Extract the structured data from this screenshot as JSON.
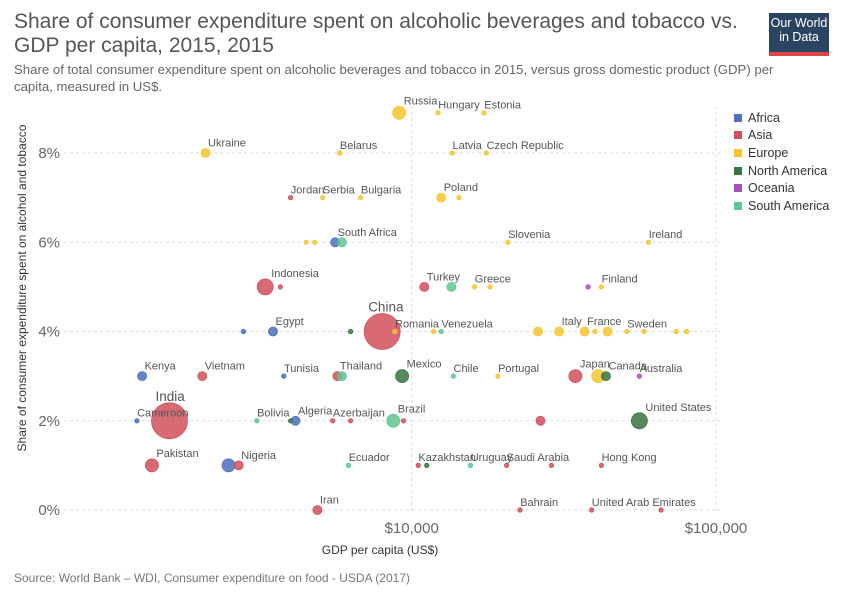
{
  "header": {
    "title": "Share of consumer expenditure spent on alcoholic beverages and tobacco vs. GDP per capita, 2015, 2015",
    "subtitle": "Share of total consumer expenditure spent on alcoholic beverages and tobacco in 2015, versus gross domestic product (GDP) per capita, measured in US$.",
    "logo_line1": "Our World",
    "logo_line2": "in Data"
  },
  "footer": {
    "source": "Source: World Bank – WDI, Consumer expenditure on food - USDA (2017)"
  },
  "chart_data": {
    "type": "scatter",
    "title": "Share of consumer expenditure spent on alcoholic beverages and tobacco vs. GDP per capita, 2015, 2015",
    "xlabel": "GDP per capita (US$)",
    "ylabel": "Share of consumer expenditure spent on alcohol and tobacco",
    "x_scale": "log",
    "xlim": [
      720,
      100000
    ],
    "ylim": [
      0,
      9
    ],
    "x_ticks": [
      {
        "value": 10000,
        "label": "$10,000"
      },
      {
        "value": 100000,
        "label": "$100,000"
      }
    ],
    "y_ticks": [
      {
        "value": 0,
        "label": "0%"
      },
      {
        "value": 2,
        "label": "2%"
      },
      {
        "value": 4,
        "label": "4%"
      },
      {
        "value": 6,
        "label": "6%"
      },
      {
        "value": 8,
        "label": "8%"
      }
    ],
    "grid": true,
    "legend_position": "right",
    "series": [
      {
        "name": "Africa",
        "color": "#4c6fbf"
      },
      {
        "name": "Asia",
        "color": "#d1505c"
      },
      {
        "name": "Europe",
        "color": "#f5c630"
      },
      {
        "name": "North America",
        "color": "#3a7443"
      },
      {
        "name": "Oceania",
        "color": "#a652ba"
      },
      {
        "name": "South America",
        "color": "#5fc791"
      }
    ],
    "points": [
      {
        "label": "Russia",
        "x": 9100,
        "y": 8.9,
        "series": "Europe",
        "size": "m"
      },
      {
        "label": "Hungary",
        "x": 12200,
        "y": 8.9,
        "series": "Europe",
        "size": "xs"
      },
      {
        "label": "Estonia",
        "x": 17300,
        "y": 8.9,
        "series": "Europe",
        "size": "xs"
      },
      {
        "label": "Ukraine",
        "x": 2100,
        "y": 8.0,
        "series": "Europe",
        "size": "s"
      },
      {
        "label": "Belarus",
        "x": 5800,
        "y": 8.0,
        "series": "Europe",
        "size": "xs"
      },
      {
        "label": "Latvia",
        "x": 13600,
        "y": 8.0,
        "series": "Europe",
        "size": "xs"
      },
      {
        "label": "Czech Republic",
        "x": 17600,
        "y": 8.0,
        "series": "Europe",
        "size": "xs"
      },
      {
        "label": "Jordan",
        "x": 4000,
        "y": 7.0,
        "series": "Asia",
        "size": "xs"
      },
      {
        "label": "Serbia",
        "x": 5100,
        "y": 7.0,
        "series": "Europe",
        "size": "xs"
      },
      {
        "label": "Bulgaria",
        "x": 6800,
        "y": 7.0,
        "series": "Europe",
        "size": "xs"
      },
      {
        "label": "Poland",
        "x": 12500,
        "y": 7.0,
        "series": "Europe",
        "size": "s"
      },
      {
        "label": "",
        "x": 14300,
        "y": 7.0,
        "series": "Europe",
        "size": "xs"
      },
      {
        "label": "South Africa",
        "x": 5600,
        "y": 6.0,
        "series": "Africa",
        "size": "s"
      },
      {
        "label": "",
        "x": 4500,
        "y": 6.0,
        "series": "Europe",
        "size": "xs"
      },
      {
        "label": "",
        "x": 4800,
        "y": 6.0,
        "series": "Europe",
        "size": "xs"
      },
      {
        "label": "",
        "x": 5900,
        "y": 6.0,
        "series": "South America",
        "size": "s"
      },
      {
        "label": "Slovenia",
        "x": 20700,
        "y": 6.0,
        "series": "Europe",
        "size": "xs"
      },
      {
        "label": "Ireland",
        "x": 60000,
        "y": 6.0,
        "series": "Europe",
        "size": "xs"
      },
      {
        "label": "Indonesia",
        "x": 3300,
        "y": 5.0,
        "series": "Asia",
        "size": "l"
      },
      {
        "label": "",
        "x": 3700,
        "y": 5.0,
        "series": "Asia",
        "size": "xs"
      },
      {
        "label": "Turkey",
        "x": 11000,
        "y": 5.0,
        "series": "Asia",
        "size": "s"
      },
      {
        "label": "",
        "x": 13500,
        "y": 5.0,
        "series": "South America",
        "size": "s"
      },
      {
        "label": "Greece",
        "x": 16100,
        "y": 5.0,
        "series": "Europe",
        "size": "xs"
      },
      {
        "label": "",
        "x": 18100,
        "y": 5.0,
        "series": "Europe",
        "size": "xs"
      },
      {
        "label": "Finland",
        "x": 42000,
        "y": 5.0,
        "series": "Europe",
        "size": "xs"
      },
      {
        "label": "",
        "x": 38000,
        "y": 5.0,
        "series": "Oceania",
        "size": "xs"
      },
      {
        "label": "China",
        "x": 8000,
        "y": 4.0,
        "series": "Asia",
        "size": "xxl"
      },
      {
        "label": "Egypt",
        "x": 3500,
        "y": 4.0,
        "series": "Africa",
        "size": "s"
      },
      {
        "label": "",
        "x": 2800,
        "y": 4.0,
        "series": "Africa",
        "size": "xs"
      },
      {
        "label": "",
        "x": 6300,
        "y": 4.0,
        "series": "North America",
        "size": "xs"
      },
      {
        "label": "Romania",
        "x": 8800,
        "y": 4.0,
        "series": "Europe",
        "size": "xs"
      },
      {
        "label": "",
        "x": 11800,
        "y": 4.0,
        "series": "Europe",
        "size": "xs"
      },
      {
        "label": "Venezuela",
        "x": 12500,
        "y": 4.0,
        "series": "South America",
        "size": "xs"
      },
      {
        "label": "",
        "x": 26000,
        "y": 4.0,
        "series": "Europe",
        "size": "s"
      },
      {
        "label": "Italy",
        "x": 30500,
        "y": 4.0,
        "series": "Europe",
        "size": "s"
      },
      {
        "label": "France",
        "x": 37000,
        "y": 4.0,
        "series": "Europe",
        "size": "s"
      },
      {
        "label": "",
        "x": 40000,
        "y": 4.0,
        "series": "Europe",
        "size": "xs"
      },
      {
        "label": "",
        "x": 44000,
        "y": 4.0,
        "series": "Europe",
        "size": "s"
      },
      {
        "label": "Sweden",
        "x": 51000,
        "y": 4.0,
        "series": "Europe",
        "size": "xs"
      },
      {
        "label": "",
        "x": 58000,
        "y": 4.0,
        "series": "Europe",
        "size": "xs"
      },
      {
        "label": "",
        "x": 74000,
        "y": 4.0,
        "series": "Europe",
        "size": "xs"
      },
      {
        "label": "",
        "x": 80000,
        "y": 4.0,
        "series": "Europe",
        "size": "xs"
      },
      {
        "label": "Kenya",
        "x": 1300,
        "y": 3.0,
        "series": "Africa",
        "size": "s"
      },
      {
        "label": "Vietnam",
        "x": 2050,
        "y": 3.0,
        "series": "Asia",
        "size": "s"
      },
      {
        "label": "Tunisia",
        "x": 3800,
        "y": 3.0,
        "series": "Africa",
        "size": "xs"
      },
      {
        "label": "Thailand",
        "x": 5700,
        "y": 3.0,
        "series": "Asia",
        "size": "s"
      },
      {
        "label": "",
        "x": 5900,
        "y": 3.0,
        "series": "South America",
        "size": "s"
      },
      {
        "label": "Mexico",
        "x": 9300,
        "y": 3.0,
        "series": "North America",
        "size": "m"
      },
      {
        "label": "Chile",
        "x": 13700,
        "y": 3.0,
        "series": "South America",
        "size": "xs"
      },
      {
        "label": "Portugal",
        "x": 19200,
        "y": 3.0,
        "series": "Europe",
        "size": "xs"
      },
      {
        "label": "Japan",
        "x": 34500,
        "y": 3.0,
        "series": "Asia",
        "size": "m"
      },
      {
        "label": "",
        "x": 41000,
        "y": 3.0,
        "series": "Europe",
        "size": "m"
      },
      {
        "label": "Canada",
        "x": 43500,
        "y": 3.0,
        "series": "North America",
        "size": "s"
      },
      {
        "label": "Australia",
        "x": 56000,
        "y": 3.0,
        "series": "Oceania",
        "size": "xs"
      },
      {
        "label": "India",
        "x": 1600,
        "y": 2.0,
        "series": "Asia",
        "size": "xxl"
      },
      {
        "label": "Cameroon",
        "x": 1250,
        "y": 2.0,
        "series": "Africa",
        "size": "xs"
      },
      {
        "label": "Bolivia",
        "x": 3100,
        "y": 2.0,
        "series": "South America",
        "size": "xs"
      },
      {
        "label": "Algeria",
        "x": 4150,
        "y": 2.0,
        "series": "Africa",
        "size": "s"
      },
      {
        "label": "",
        "x": 4000,
        "y": 2.0,
        "series": "North America",
        "size": "xs"
      },
      {
        "label": "Azerbaijan",
        "x": 5500,
        "y": 2.0,
        "series": "Asia",
        "size": "xs"
      },
      {
        "label": "",
        "x": 6300,
        "y": 2.0,
        "series": "Asia",
        "size": "xs"
      },
      {
        "label": "Brazil",
        "x": 8700,
        "y": 2.0,
        "series": "South America",
        "size": "m"
      },
      {
        "label": "",
        "x": 9400,
        "y": 2.0,
        "series": "Asia",
        "size": "xs"
      },
      {
        "label": "",
        "x": 26500,
        "y": 2.0,
        "series": "Asia",
        "size": "s"
      },
      {
        "label": "United States",
        "x": 56000,
        "y": 2.0,
        "series": "North America",
        "size": "l"
      },
      {
        "label": "Pakistan",
        "x": 1400,
        "y": 1.0,
        "series": "Asia",
        "size": "m"
      },
      {
        "label": "Nigeria",
        "x": 2700,
        "y": 1.0,
        "series": "Asia",
        "size": "s"
      },
      {
        "label": "",
        "x": 2500,
        "y": 1.0,
        "series": "Africa",
        "size": "m"
      },
      {
        "label": "Ecuador",
        "x": 6200,
        "y": 1.0,
        "series": "South America",
        "size": "xs"
      },
      {
        "label": "Kazakhstan",
        "x": 10500,
        "y": 1.0,
        "series": "Asia",
        "size": "xs"
      },
      {
        "label": "",
        "x": 11200,
        "y": 1.0,
        "series": "North America",
        "size": "xs"
      },
      {
        "label": "Uruguay",
        "x": 15600,
        "y": 1.0,
        "series": "South America",
        "size": "xs"
      },
      {
        "label": "Saudi Arabia",
        "x": 20500,
        "y": 1.0,
        "series": "Asia",
        "size": "xs"
      },
      {
        "label": "",
        "x": 28800,
        "y": 1.0,
        "series": "Asia",
        "size": "xs"
      },
      {
        "label": "Hong Kong",
        "x": 42000,
        "y": 1.0,
        "series": "Asia",
        "size": "xs"
      },
      {
        "label": "Iran",
        "x": 4900,
        "y": 0.0,
        "series": "Asia",
        "size": "s"
      },
      {
        "label": "Bahrain",
        "x": 22700,
        "y": 0.0,
        "series": "Asia",
        "size": "xs"
      },
      {
        "label": "United Arab Emirates",
        "x": 39000,
        "y": 0.0,
        "series": "Asia",
        "size": "xs"
      },
      {
        "label": "",
        "x": 66000,
        "y": 0.0,
        "series": "Asia",
        "size": "xs"
      }
    ]
  }
}
